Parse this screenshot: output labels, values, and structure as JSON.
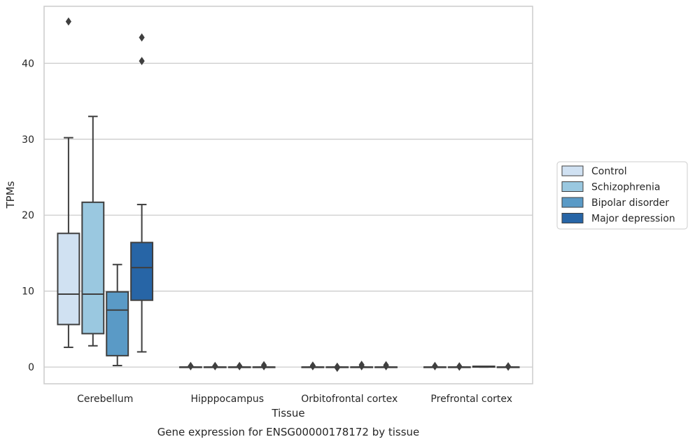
{
  "chart_data": {
    "type": "box",
    "xlabel": "Tissue",
    "ylabel": "TPMs",
    "caption": "Gene expression for ENSG00000178172 by tissue",
    "ylim": [
      -2.2,
      47.5
    ],
    "yticks": [
      0,
      10,
      20,
      30,
      40
    ],
    "categories": [
      "Cerebellum",
      "Hipppocampus",
      "Orbitofrontal cortex",
      "Prefrontal cortex"
    ],
    "legend": {
      "placement": "right",
      "entries": [
        "Control",
        "Schizophrenia",
        "Bipolar disorder",
        "Major depression"
      ]
    },
    "grid": "horizontal",
    "series": [
      {
        "name": "Control",
        "color": "#d0e1f2",
        "boxes": [
          {
            "whislo": 2.6,
            "q1": 5.6,
            "med": 9.6,
            "q3": 17.6,
            "whishi": 30.2,
            "fliers": [
              45.5
            ]
          },
          {
            "whislo": 0.0,
            "q1": 0.0,
            "med": 0.0,
            "q3": 0.0,
            "whishi": 0.0,
            "fliers": [
              0.1,
              0.15
            ]
          },
          {
            "whislo": 0.0,
            "q1": 0.0,
            "med": 0.0,
            "q3": 0.0,
            "whishi": 0.0,
            "fliers": [
              0.1,
              0.2
            ]
          },
          {
            "whislo": 0.0,
            "q1": 0.0,
            "med": 0.0,
            "q3": 0.0,
            "whishi": 0.0,
            "fliers": [
              0.1,
              0.15
            ]
          }
        ]
      },
      {
        "name": "Schizophrenia",
        "color": "#9ac8e0",
        "boxes": [
          {
            "whislo": 2.8,
            "q1": 4.4,
            "med": 9.6,
            "q3": 21.7,
            "whishi": 33.0,
            "fliers": []
          },
          {
            "whislo": 0.0,
            "q1": 0.0,
            "med": 0.0,
            "q3": 0.0,
            "whishi": 0.0,
            "fliers": [
              0.1,
              0.15
            ]
          },
          {
            "whislo": 0.0,
            "q1": 0.0,
            "med": 0.0,
            "q3": 0.0,
            "whishi": 0.0,
            "fliers": [
              -0.1,
              0.05
            ]
          },
          {
            "whislo": 0.0,
            "q1": 0.0,
            "med": 0.0,
            "q3": 0.0,
            "whishi": 0.0,
            "fliers": [
              0.05,
              0.1
            ]
          }
        ]
      },
      {
        "name": "Bipolar disorder",
        "color": "#5a9ac6",
        "boxes": [
          {
            "whislo": 0.2,
            "q1": 1.5,
            "med": 7.5,
            "q3": 9.9,
            "whishi": 13.5,
            "fliers": []
          },
          {
            "whislo": 0.0,
            "q1": 0.0,
            "med": 0.0,
            "q3": 0.0,
            "whishi": 0.0,
            "fliers": [
              0.1,
              0.15
            ]
          },
          {
            "whislo": 0.0,
            "q1": 0.0,
            "med": 0.0,
            "q3": 0.0,
            "whishi": 0.0,
            "fliers": [
              0.1,
              0.3
            ]
          },
          {
            "whislo": 0.0,
            "q1": 0.0,
            "med": 0.1,
            "q3": 0.1,
            "whishi": 0.1,
            "fliers": []
          }
        ]
      },
      {
        "name": "Major depression",
        "color": "#2765a6",
        "boxes": [
          {
            "whislo": 2.0,
            "q1": 8.8,
            "med": 13.1,
            "q3": 16.4,
            "whishi": 21.4,
            "fliers": [
              40.3,
              43.4
            ]
          },
          {
            "whislo": 0.0,
            "q1": 0.0,
            "med": 0.0,
            "q3": 0.0,
            "whishi": 0.0,
            "fliers": [
              0.1,
              0.25
            ]
          },
          {
            "whislo": 0.0,
            "q1": 0.0,
            "med": 0.0,
            "q3": 0.0,
            "whishi": 0.0,
            "fliers": [
              0.1,
              0.25
            ]
          },
          {
            "whislo": 0.0,
            "q1": 0.0,
            "med": 0.0,
            "q3": 0.0,
            "whishi": 0.0,
            "fliers": [
              0.05,
              0.1
            ]
          }
        ]
      }
    ]
  }
}
